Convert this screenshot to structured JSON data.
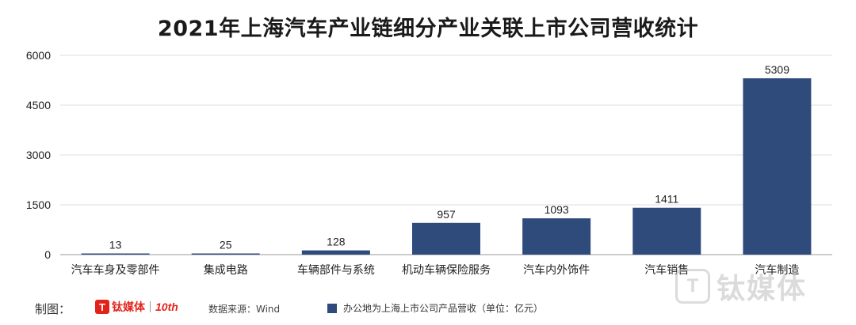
{
  "chart_data": {
    "type": "bar",
    "title": "2021年上海汽车产业链细分产业关联上市公司营收统计",
    "categories": [
      "汽车车身及零部件",
      "集成电路",
      "车辆部件与系统",
      "机动车辆保险服务",
      "汽车内外饰件",
      "汽车销售",
      "汽车制造"
    ],
    "series": [
      {
        "name": "办公地为上海上市公司产品营收（单位：亿元）",
        "values": [
          13,
          25,
          128,
          957,
          1093,
          1411,
          5309
        ]
      }
    ],
    "data_labels": [
      "13",
      "25",
      "128",
      "957",
      "1093",
      "1411",
      "5309"
    ],
    "yticks": [
      "0",
      "1500",
      "3000",
      "4500",
      "6000"
    ],
    "ylim": [
      0,
      6000
    ],
    "grid": true,
    "legend": "bottom",
    "bar_color": "#2f4b7c"
  },
  "footer": {
    "credit_label": "制图：",
    "logo_mark": "T",
    "logo_text": "钛媒体",
    "logo_ten": "10th",
    "source": "数据来源：Wind"
  },
  "watermark": {
    "mark": "T",
    "text": "钛媒体"
  }
}
